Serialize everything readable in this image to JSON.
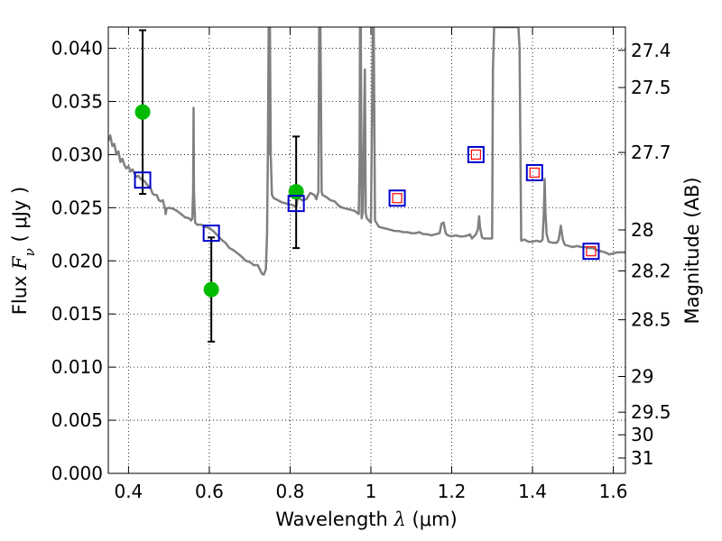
{
  "chart_data": {
    "type": "scatter",
    "xlabel": {
      "prefix": "Wavelength  ",
      "symbol": "λ",
      "suffix": " (μm)"
    },
    "ylabel": {
      "prefix": "Flux  ",
      "symbol": "F",
      "sub": "ν",
      "suffix": "  ( μJy )"
    },
    "y2label": "Magnitude (AB)",
    "xlim": [
      0.35,
      1.63
    ],
    "ylim": [
      0.0,
      0.042
    ],
    "grid": true,
    "x_ticks": [
      {
        "value": 0.4,
        "label": "0.4"
      },
      {
        "value": 0.6,
        "label": "0.6"
      },
      {
        "value": 0.8,
        "label": "0.8"
      },
      {
        "value": 1.0,
        "label": "1"
      },
      {
        "value": 1.2,
        "label": "1.2"
      },
      {
        "value": 1.4,
        "label": "1.4"
      },
      {
        "value": 1.6,
        "label": "1.6"
      }
    ],
    "y_ticks": [
      {
        "value": 0.0,
        "label": "0.000"
      },
      {
        "value": 0.005,
        "label": "0.005"
      },
      {
        "value": 0.01,
        "label": "0.010"
      },
      {
        "value": 0.015,
        "label": "0.015"
      },
      {
        "value": 0.02,
        "label": "0.020"
      },
      {
        "value": 0.025,
        "label": "0.025"
      },
      {
        "value": 0.03,
        "label": "0.030"
      },
      {
        "value": 0.035,
        "label": "0.035"
      },
      {
        "value": 0.04,
        "label": "0.040"
      }
    ],
    "y2_ticks": [
      {
        "value": 27.4,
        "label": "27.4"
      },
      {
        "value": 27.5,
        "label": "27.5"
      },
      {
        "value": 27.7,
        "label": "27.7"
      },
      {
        "value": 28.0,
        "label": "28"
      },
      {
        "value": 28.2,
        "label": "28.2"
      },
      {
        "value": 28.5,
        "label": "28.5"
      },
      {
        "value": 29.0,
        "label": "29"
      },
      {
        "value": 29.5,
        "label": "29.5"
      },
      {
        "value": 30.0,
        "label": "30"
      },
      {
        "value": 31.0,
        "label": "31"
      }
    ],
    "series": [
      {
        "kind": "line",
        "color": "#808080",
        "points": [
          [
            0.35,
            0.0313
          ],
          [
            0.355,
            0.0318
          ],
          [
            0.36,
            0.0308
          ],
          [
            0.365,
            0.031
          ],
          [
            0.37,
            0.03
          ],
          [
            0.375,
            0.0303
          ],
          [
            0.38,
            0.0293
          ],
          [
            0.385,
            0.0296
          ],
          [
            0.39,
            0.029
          ],
          [
            0.395,
            0.0287
          ],
          [
            0.4,
            0.0289
          ],
          [
            0.405,
            0.0284
          ],
          [
            0.41,
            0.0286
          ],
          [
            0.415,
            0.0282
          ],
          [
            0.42,
            0.0279
          ],
          [
            0.425,
            0.028
          ],
          [
            0.43,
            0.0277
          ],
          [
            0.435,
            0.0276
          ],
          [
            0.44,
            0.0275
          ],
          [
            0.445,
            0.0272
          ],
          [
            0.45,
            0.027
          ],
          [
            0.455,
            0.0268
          ],
          [
            0.46,
            0.0263
          ],
          [
            0.465,
            0.0262
          ],
          [
            0.47,
            0.0262
          ],
          [
            0.475,
            0.0257
          ],
          [
            0.48,
            0.0256
          ],
          [
            0.485,
            0.0257
          ],
          [
            0.49,
            0.025
          ],
          [
            0.492,
            0.0244
          ],
          [
            0.494,
            0.0249
          ],
          [
            0.5,
            0.025
          ],
          [
            0.51,
            0.0249
          ],
          [
            0.52,
            0.0247
          ],
          [
            0.53,
            0.0244
          ],
          [
            0.54,
            0.0241
          ],
          [
            0.55,
            0.024
          ],
          [
            0.555,
            0.0238
          ],
          [
            0.558,
            0.024
          ],
          [
            0.56,
            0.0265
          ],
          [
            0.561,
            0.0344
          ],
          [
            0.562,
            0.0265
          ],
          [
            0.565,
            0.0236
          ],
          [
            0.57,
            0.0234
          ],
          [
            0.58,
            0.0234
          ],
          [
            0.59,
            0.0232
          ],
          [
            0.6,
            0.0231
          ],
          [
            0.61,
            0.0228
          ],
          [
            0.62,
            0.0224
          ],
          [
            0.63,
            0.022
          ],
          [
            0.64,
            0.0217
          ],
          [
            0.65,
            0.0212
          ],
          [
            0.66,
            0.021
          ],
          [
            0.67,
            0.0207
          ],
          [
            0.68,
            0.0204
          ],
          [
            0.69,
            0.02
          ],
          [
            0.7,
            0.0199
          ],
          [
            0.71,
            0.0196
          ],
          [
            0.72,
            0.0196
          ],
          [
            0.725,
            0.0192
          ],
          [
            0.73,
            0.0188
          ],
          [
            0.735,
            0.0187
          ],
          [
            0.74,
            0.0192
          ],
          [
            0.743,
            0.0225
          ],
          [
            0.745,
            0.03
          ],
          [
            0.747,
            0.042
          ],
          [
            0.749,
            0.03
          ],
          [
            0.75,
            0.042
          ],
          [
            0.752,
            0.03
          ],
          [
            0.755,
            0.0262
          ],
          [
            0.76,
            0.0259
          ],
          [
            0.77,
            0.0257
          ],
          [
            0.78,
            0.0255
          ],
          [
            0.79,
            0.0254
          ],
          [
            0.8,
            0.0253
          ],
          [
            0.81,
            0.0252
          ],
          [
            0.815,
            0.025
          ],
          [
            0.82,
            0.0262
          ],
          [
            0.825,
            0.0258
          ],
          [
            0.83,
            0.0257
          ],
          [
            0.84,
            0.0258
          ],
          [
            0.85,
            0.0264
          ],
          [
            0.86,
            0.0262
          ],
          [
            0.865,
            0.0258
          ],
          [
            0.87,
            0.0265
          ],
          [
            0.872,
            0.042
          ],
          [
            0.875,
            0.042
          ],
          [
            0.878,
            0.0265
          ],
          [
            0.88,
            0.0262
          ],
          [
            0.89,
            0.026
          ],
          [
            0.9,
            0.0257
          ],
          [
            0.91,
            0.0256
          ],
          [
            0.92,
            0.0252
          ],
          [
            0.93,
            0.025
          ],
          [
            0.94,
            0.0249
          ],
          [
            0.95,
            0.0248
          ],
          [
            0.96,
            0.0247
          ],
          [
            0.97,
            0.0244
          ],
          [
            0.972,
            0.029
          ],
          [
            0.973,
            0.042
          ],
          [
            0.975,
            0.042
          ],
          [
            0.977,
            0.024
          ],
          [
            0.98,
            0.0246
          ],
          [
            0.985,
            0.038
          ],
          [
            0.987,
            0.0245
          ],
          [
            0.99,
            0.024
          ],
          [
            1.0,
            0.0236
          ],
          [
            1.005,
            0.042
          ],
          [
            1.007,
            0.042
          ],
          [
            1.01,
            0.0238
          ],
          [
            1.02,
            0.0232
          ],
          [
            1.03,
            0.0231
          ],
          [
            1.04,
            0.023
          ],
          [
            1.05,
            0.0229
          ],
          [
            1.06,
            0.0228
          ],
          [
            1.07,
            0.0228
          ],
          [
            1.08,
            0.0227
          ],
          [
            1.09,
            0.0227
          ],
          [
            1.1,
            0.0226
          ],
          [
            1.11,
            0.0226
          ],
          [
            1.12,
            0.0227
          ],
          [
            1.13,
            0.0225
          ],
          [
            1.14,
            0.0225
          ],
          [
            1.15,
            0.0224
          ],
          [
            1.16,
            0.0225
          ],
          [
            1.17,
            0.0226
          ],
          [
            1.175,
            0.0235
          ],
          [
            1.18,
            0.0236
          ],
          [
            1.185,
            0.0226
          ],
          [
            1.19,
            0.0224
          ],
          [
            1.2,
            0.0223
          ],
          [
            1.21,
            0.0224
          ],
          [
            1.22,
            0.0223
          ],
          [
            1.23,
            0.0223
          ],
          [
            1.24,
            0.0224
          ],
          [
            1.245,
            0.0225
          ],
          [
            1.25,
            0.0221
          ],
          [
            1.255,
            0.0223
          ],
          [
            1.26,
            0.0225
          ],
          [
            1.265,
            0.023
          ],
          [
            1.268,
            0.0242
          ],
          [
            1.27,
            0.0232
          ],
          [
            1.275,
            0.0222
          ],
          [
            1.28,
            0.0221
          ],
          [
            1.29,
            0.0221
          ],
          [
            1.3,
            0.0221
          ],
          [
            1.302,
            0.038
          ],
          [
            1.305,
            0.042
          ],
          [
            1.307,
            0.042
          ],
          [
            1.31,
            0.042
          ],
          [
            1.32,
            0.042
          ],
          [
            1.33,
            0.042
          ],
          [
            1.34,
            0.042
          ],
          [
            1.35,
            0.042
          ],
          [
            1.36,
            0.042
          ],
          [
            1.365,
            0.042
          ],
          [
            1.368,
            0.04
          ],
          [
            1.372,
            0.0219
          ],
          [
            1.38,
            0.022
          ],
          [
            1.39,
            0.0218
          ],
          [
            1.4,
            0.0218
          ],
          [
            1.41,
            0.0219
          ],
          [
            1.42,
            0.0218
          ],
          [
            1.425,
            0.022
          ],
          [
            1.428,
            0.0245
          ],
          [
            1.43,
            0.0277
          ],
          [
            1.432,
            0.0245
          ],
          [
            1.435,
            0.0225
          ],
          [
            1.44,
            0.0218
          ],
          [
            1.45,
            0.0217
          ],
          [
            1.46,
            0.0217
          ],
          [
            1.465,
            0.022
          ],
          [
            1.47,
            0.0233
          ],
          [
            1.475,
            0.022
          ],
          [
            1.48,
            0.0215
          ],
          [
            1.49,
            0.0214
          ],
          [
            1.5,
            0.0213
          ],
          [
            1.51,
            0.0214
          ],
          [
            1.52,
            0.0213
          ],
          [
            1.53,
            0.0213
          ],
          [
            1.54,
            0.0212
          ],
          [
            1.55,
            0.0212
          ],
          [
            1.56,
            0.021
          ],
          [
            1.57,
            0.0209
          ],
          [
            1.58,
            0.0208
          ],
          [
            1.59,
            0.0206
          ],
          [
            1.6,
            0.0207
          ],
          [
            1.61,
            0.0208
          ],
          [
            1.62,
            0.0208
          ],
          [
            1.63,
            0.0208
          ]
        ]
      },
      {
        "kind": "observed_points",
        "color": "#00bb00",
        "errorbar_color": "#000000",
        "points": [
          {
            "x": 0.435,
            "y": 0.034,
            "err_lo": 0.0263,
            "err_hi": 0.0417
          },
          {
            "x": 0.605,
            "y": 0.0173,
            "err_lo": 0.0124,
            "err_hi": 0.0222
          },
          {
            "x": 0.815,
            "y": 0.0265,
            "err_lo": 0.0212,
            "err_hi": 0.0317
          }
        ]
      },
      {
        "kind": "model_band_flux",
        "color": "#0000cc",
        "marker": "square",
        "points": [
          {
            "x": 0.435,
            "y": 0.0276
          },
          {
            "x": 0.605,
            "y": 0.0226
          },
          {
            "x": 0.815,
            "y": 0.0254
          },
          {
            "x": 1.065,
            "y": 0.0259
          },
          {
            "x": 1.26,
            "y": 0.03
          },
          {
            "x": 1.405,
            "y": 0.0283
          },
          {
            "x": 1.545,
            "y": 0.0209
          }
        ]
      },
      {
        "kind": "model_band_flux_inner",
        "color": "#ff0000",
        "marker": "square",
        "points": [
          {
            "x": 1.065,
            "y": 0.0259
          },
          {
            "x": 1.26,
            "y": 0.03
          },
          {
            "x": 1.405,
            "y": 0.0283
          },
          {
            "x": 1.545,
            "y": 0.0209
          }
        ]
      }
    ]
  }
}
